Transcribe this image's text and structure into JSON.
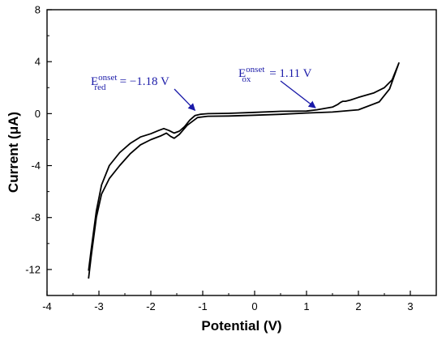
{
  "chart_data": {
    "type": "line",
    "title": "",
    "xlabel": "Potential (V)",
    "ylabel": "Current (μA)",
    "xlim": [
      -4,
      3.5
    ],
    "ylim": [
      -14,
      8
    ],
    "xticks": [
      -4,
      -3,
      -2,
      -1,
      0,
      1,
      2,
      3
    ],
    "yticks": [
      -12,
      -8,
      -4,
      0,
      4,
      8
    ],
    "tick_labels_x": [
      "-4",
      "-3",
      "-2",
      "-1",
      "0",
      "1",
      "2",
      "3"
    ],
    "tick_labels_y": [
      "-12",
      "-8",
      "-4",
      "0",
      "4",
      "8"
    ],
    "grid": false,
    "line_color": "#000000",
    "annotation_color": "#1a1aa8",
    "series": [
      {
        "x": [
          -3.2,
          -3.15,
          -3.05,
          -2.95,
          -2.8,
          -2.6,
          -2.4,
          -2.2,
          -2.0,
          -1.8,
          -1.7,
          -1.62,
          -1.55,
          -1.45,
          -1.3,
          -1.1,
          -0.9,
          -0.5,
          0.0,
          0.5,
          1.0,
          1.5,
          2.0,
          2.4,
          2.6,
          2.78,
          2.65,
          2.5,
          2.3,
          2.0,
          1.85,
          1.75,
          1.7,
          1.65,
          1.6,
          1.5,
          1.2,
          1.0,
          0.5,
          0.0,
          -0.5,
          -0.9,
          -1.05,
          -1.15,
          -1.25,
          -1.35,
          -1.45,
          -1.55,
          -1.65,
          -1.75,
          -1.85,
          -2.0,
          -2.2,
          -2.4,
          -2.6,
          -2.8,
          -2.95,
          -3.05,
          -3.15,
          -3.2
        ],
        "y": [
          -12.7,
          -11.0,
          -8.0,
          -6.2,
          -5.0,
          -4.0,
          -3.1,
          -2.4,
          -2.0,
          -1.7,
          -1.5,
          -1.75,
          -1.9,
          -1.6,
          -0.9,
          -0.3,
          -0.2,
          -0.18,
          -0.12,
          -0.05,
          0.05,
          0.12,
          0.3,
          0.9,
          1.9,
          3.9,
          2.6,
          2.0,
          1.6,
          1.25,
          1.05,
          0.95,
          0.95,
          0.85,
          0.7,
          0.5,
          0.3,
          0.2,
          0.18,
          0.1,
          0.02,
          0.0,
          -0.05,
          -0.15,
          -0.5,
          -1.0,
          -1.35,
          -1.5,
          -1.3,
          -1.15,
          -1.3,
          -1.55,
          -1.8,
          -2.3,
          -3.0,
          -4.0,
          -5.5,
          -7.5,
          -10.5,
          -12.1
        ]
      }
    ],
    "annotations": [
      {
        "id": "red",
        "letter": "E",
        "sup": "onset",
        "sub": "red",
        "value_text": "= −1.18 V",
        "x": -1.18,
        "y": 0
      },
      {
        "id": "ox",
        "letter": "E",
        "sup": "onset",
        "sub": "ox",
        "value_text": "= 1.11 V",
        "x": 1.11,
        "y": 0.2
      }
    ]
  }
}
